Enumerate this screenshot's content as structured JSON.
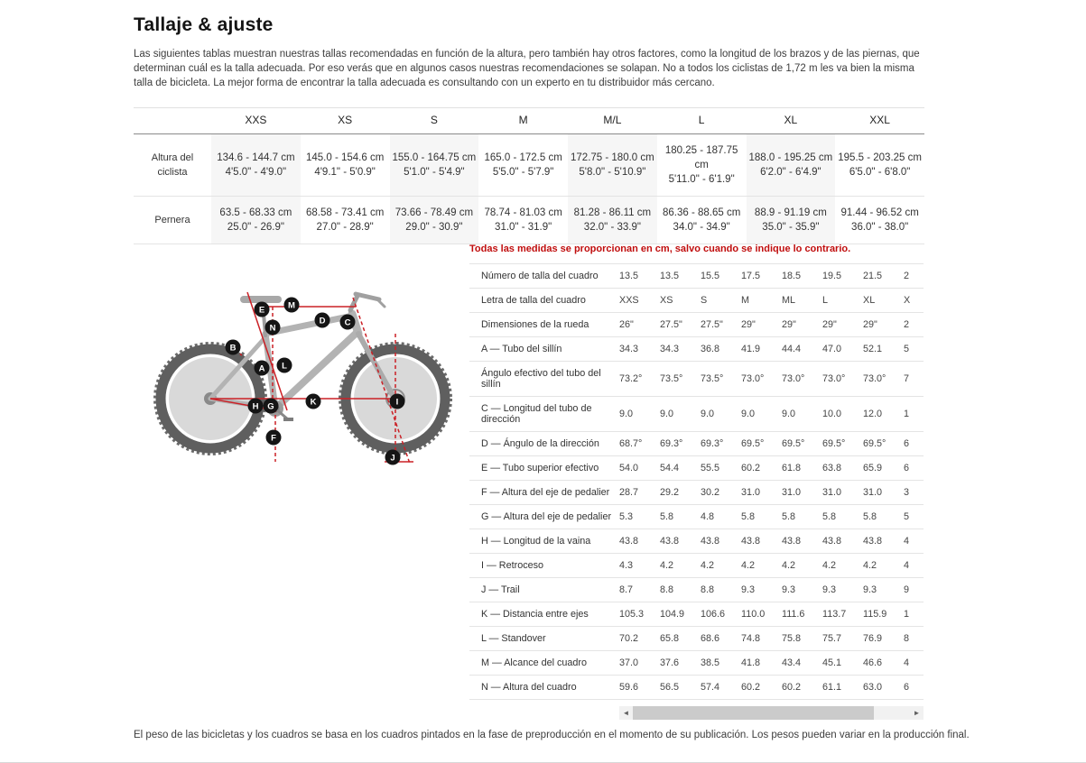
{
  "page": {
    "title": "Tallaje & ajuste",
    "intro": "Las siguientes tablas muestran nuestras tallas recomendadas en función de la altura, pero también hay otros factores, como la longitud de los brazos y de las piernas, que determinan cuál es la talla adecuada. Por eso verás que en algunos casos nuestras recomendaciones se solapan. No a todos los ciclistas de 1,72 m les va bien la misma talla de bicicleta. La mejor forma de encontrar la talla adecuada es consultando con un experto en tu distribuidor más cercano.",
    "footer": "El peso de las bicicletas y los cuadros se basa en los cuadros pintados en la fase de preproducción en el momento de su publicación. Los pesos pueden variar en la producción final."
  },
  "colors": {
    "accent_red": "#c00d0d",
    "diagram_red": "#cb2026",
    "shaded_column": "#f6f6f6"
  },
  "size_table": {
    "columns": [
      "XXS",
      "XS",
      "S",
      "M",
      "M/L",
      "L",
      "XL",
      "XXL"
    ],
    "rows": [
      {
        "label": "Altura del ciclista",
        "cm": [
          "134.6 - 144.7 cm",
          "145.0 - 154.6 cm",
          "155.0 - 164.75 cm",
          "165.0 - 172.5 cm",
          "172.75 - 180.0 cm",
          "180.25 - 187.75 cm",
          "188.0 - 195.25 cm",
          "195.5 - 203.25 cm"
        ],
        "inches": [
          "4'5.0\" - 4'9.0\"",
          "4'9.1\" - 5'0.9\"",
          "5'1.0\" - 5'4.9\"",
          "5'5.0\" - 5'7.9\"",
          "5'8.0\" - 5'10.9\"",
          "5'11.0\" - 6'1.9\"",
          "6'2.0\" - 6'4.9\"",
          "6'5.0\" - 6'8.0\""
        ]
      },
      {
        "label": "Pernera",
        "cm": [
          "63.5 - 68.33 cm",
          "68.58 - 73.41 cm",
          "73.66 - 78.49 cm",
          "78.74 - 81.03 cm",
          "81.28 - 86.11 cm",
          "86.36 - 88.65 cm",
          "88.9 - 91.19 cm",
          "91.44 - 96.52 cm"
        ],
        "inches": [
          "25.0\" - 26.9\"",
          "27.0\" - 28.9\"",
          "29.0\" - 30.9\"",
          "31.0\" - 31.9\"",
          "32.0\" - 33.9\"",
          "34.0\" - 34.9\"",
          "35.0\" - 35.9\"",
          "36.0\" - 38.0\""
        ]
      }
    ]
  },
  "geometry": {
    "note": "Todas las medidas se proporcionan en cm, salvo cuando se indique lo contrario.",
    "diagram_labels": [
      "A",
      "B",
      "C",
      "D",
      "E",
      "F",
      "G",
      "H",
      "I",
      "J",
      "K",
      "L",
      "M",
      "N"
    ],
    "rows": [
      {
        "label": "Número de talla del cuadro",
        "values": [
          "13.5",
          "13.5",
          "15.5",
          "17.5",
          "18.5",
          "19.5",
          "21.5",
          "2"
        ]
      },
      {
        "label": "Letra de talla del cuadro",
        "values": [
          "XXS",
          "XS",
          "S",
          "M",
          "ML",
          "L",
          "XL",
          "X"
        ]
      },
      {
        "label": "Dimensiones de la rueda",
        "values": [
          "26\"",
          "27.5\"",
          "27.5\"",
          "29\"",
          "29\"",
          "29\"",
          "29\"",
          "2"
        ]
      },
      {
        "label": "A — Tubo del sillín",
        "values": [
          "34.3",
          "34.3",
          "36.8",
          "41.9",
          "44.4",
          "47.0",
          "52.1",
          "5"
        ]
      },
      {
        "label": "Ángulo efectivo del tubo del sillín",
        "values": [
          "73.2°",
          "73.5°",
          "73.5°",
          "73.0°",
          "73.0°",
          "73.0°",
          "73.0°",
          "7"
        ]
      },
      {
        "label": "C — Longitud del tubo de dirección",
        "values": [
          "9.0",
          "9.0",
          "9.0",
          "9.0",
          "9.0",
          "10.0",
          "12.0",
          "1"
        ]
      },
      {
        "label": "D — Ángulo de la dirección",
        "values": [
          "68.7°",
          "69.3°",
          "69.3°",
          "69.5°",
          "69.5°",
          "69.5°",
          "69.5°",
          "6"
        ]
      },
      {
        "label": "E — Tubo superior efectivo",
        "values": [
          "54.0",
          "54.4",
          "55.5",
          "60.2",
          "61.8",
          "63.8",
          "65.9",
          "6"
        ]
      },
      {
        "label": "F — Altura del eje de pedalier",
        "values": [
          "28.7",
          "29.2",
          "30.2",
          "31.0",
          "31.0",
          "31.0",
          "31.0",
          "3"
        ]
      },
      {
        "label": "G — Altura del eje de pedalier",
        "values": [
          "5.3",
          "5.8",
          "4.8",
          "5.8",
          "5.8",
          "5.8",
          "5.8",
          "5"
        ]
      },
      {
        "label": "H — Longitud de la vaina",
        "values": [
          "43.8",
          "43.8",
          "43.8",
          "43.8",
          "43.8",
          "43.8",
          "43.8",
          "4"
        ]
      },
      {
        "label": "I — Retroceso",
        "values": [
          "4.3",
          "4.2",
          "4.2",
          "4.2",
          "4.2",
          "4.2",
          "4.2",
          "4"
        ]
      },
      {
        "label": "J — Trail",
        "values": [
          "8.7",
          "8.8",
          "8.8",
          "9.3",
          "9.3",
          "9.3",
          "9.3",
          "9"
        ]
      },
      {
        "label": "K — Distancia entre ejes",
        "values": [
          "105.3",
          "104.9",
          "106.6",
          "110.0",
          "111.6",
          "113.7",
          "115.9",
          "1"
        ]
      },
      {
        "label": "L — Standover",
        "values": [
          "70.2",
          "65.8",
          "68.6",
          "74.8",
          "75.8",
          "75.7",
          "76.9",
          "8"
        ]
      },
      {
        "label": "M — Alcance del cuadro",
        "values": [
          "37.0",
          "37.6",
          "38.5",
          "41.8",
          "43.4",
          "45.1",
          "46.6",
          "4"
        ]
      },
      {
        "label": "N — Altura del cuadro",
        "values": [
          "59.6",
          "56.5",
          "57.4",
          "60.2",
          "60.2",
          "61.1",
          "63.0",
          "6"
        ]
      }
    ]
  },
  "scrollbar": {
    "left_arrow": "◄",
    "right_arrow": "►"
  }
}
